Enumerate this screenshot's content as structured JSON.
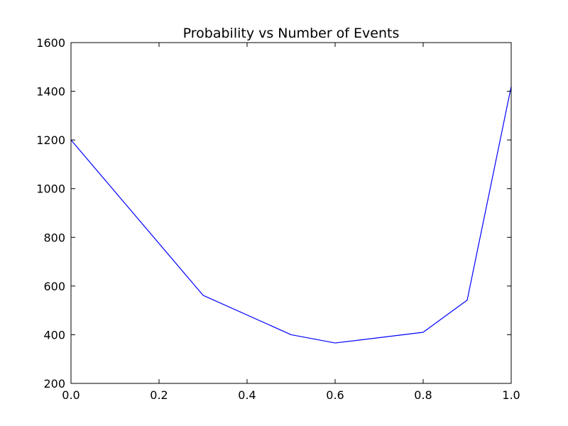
{
  "chart_data": {
    "type": "line",
    "title": "Probability vs Number of Events",
    "xlabel": "",
    "ylabel": "",
    "xlim": [
      0.0,
      1.0
    ],
    "ylim": [
      200,
      1600
    ],
    "xticks": [
      "0.0",
      "0.2",
      "0.4",
      "0.6",
      "0.8",
      "1.0"
    ],
    "yticks": [
      "200",
      "400",
      "600",
      "800",
      "1000",
      "1200",
      "1400",
      "1600"
    ],
    "grid": false,
    "legend": "none",
    "series": [
      {
        "color": "#0000ff",
        "x": [
          0.0,
          0.3,
          0.5,
          0.6,
          0.8,
          0.9,
          1.0
        ],
        "y": [
          1200,
          562,
          400,
          366,
          410,
          542,
          1420
        ]
      }
    ]
  }
}
